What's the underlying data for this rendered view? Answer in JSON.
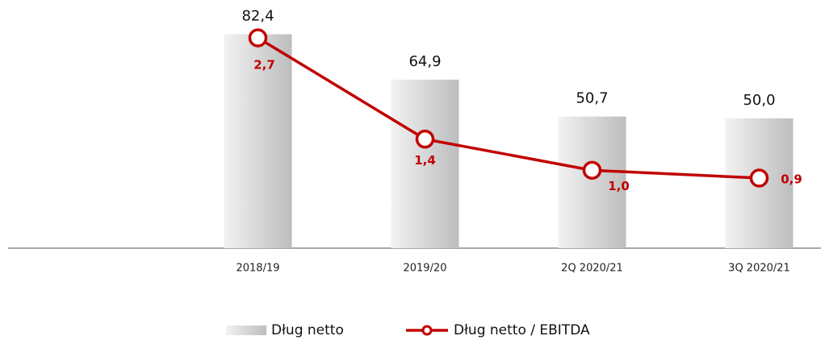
{
  "chart_data": {
    "type": "bar-line",
    "categories": [
      "2018/19",
      "2019/20",
      "2Q 2020/21",
      "3Q 2020/21"
    ],
    "series": [
      {
        "name": "Dług netto",
        "type": "bar",
        "color": "#bdbdbd",
        "values": [
          82.4,
          64.9,
          50.7,
          50.0
        ],
        "value_labels": [
          "82,4",
          "64,9",
          "50,7",
          "50,0"
        ]
      },
      {
        "name": "Dług netto / EBITDA",
        "type": "line",
        "axis": "y2",
        "color": "#c00000",
        "values": [
          2.7,
          1.4,
          1.0,
          0.9
        ],
        "value_labels": [
          "2,7",
          "1,4",
          "1,0",
          "0,9"
        ]
      }
    ],
    "ylim": [
      0,
      90
    ],
    "y2lim": [
      0,
      3
    ],
    "legend": "bottom"
  }
}
